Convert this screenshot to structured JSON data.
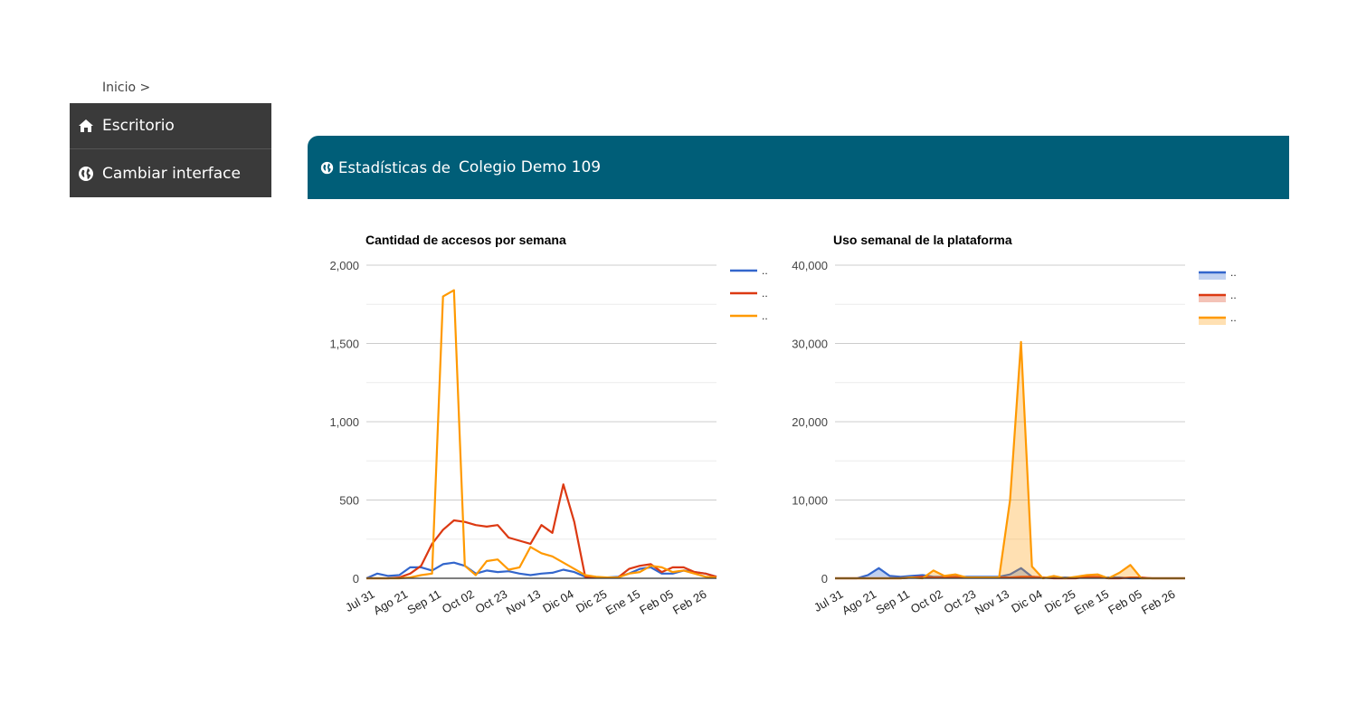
{
  "breadcrumb": {
    "home": "Inicio >"
  },
  "sidebar": {
    "items": [
      {
        "label": "Escritorio",
        "icon": "home-icon"
      },
      {
        "label": "Cambiar interface",
        "icon": "globe-icon"
      }
    ]
  },
  "banner": {
    "prefix": "Estadísticas de",
    "school": "Colegio Demo 109",
    "icon": "globe-icon",
    "color": "#005e78"
  },
  "colors": {
    "blue": "#3366cc",
    "red": "#dc3912",
    "orange": "#ff9900"
  },
  "chart_data": [
    {
      "type": "line",
      "title": "Cantidad de accesos por semana",
      "x_tick_labels": [
        "Jul 31",
        "Ago 21",
        "Sep 11",
        "Oct 02",
        "Oct 23",
        "Nov 13",
        "Dic 04",
        "Dic 25",
        "Ene 15",
        "Feb 05",
        "Feb 26"
      ],
      "ylim": [
        0,
        2000
      ],
      "yticks": [
        0,
        500,
        1000,
        1500,
        2000
      ],
      "ytick_labels": [
        "0",
        "500",
        "1,000",
        "1,500",
        "2,000"
      ],
      "legend_position": "right",
      "series": [
        {
          "legend": "..",
          "color": "#3366cc",
          "values": [
            0,
            30,
            15,
            20,
            70,
            70,
            50,
            90,
            100,
            80,
            30,
            50,
            40,
            45,
            30,
            20,
            30,
            35,
            55,
            40,
            10,
            5,
            5,
            10,
            30,
            60,
            70,
            30,
            30,
            50,
            40,
            30,
            10
          ]
        },
        {
          "legend": "..",
          "color": "#dc3912",
          "values": [
            0,
            0,
            0,
            5,
            30,
            80,
            220,
            310,
            370,
            360,
            340,
            330,
            340,
            260,
            240,
            220,
            340,
            290,
            600,
            360,
            10,
            5,
            5,
            5,
            60,
            80,
            90,
            40,
            70,
            70,
            40,
            30,
            10
          ]
        },
        {
          "legend": "..",
          "color": "#ff9900",
          "values": [
            0,
            0,
            0,
            0,
            5,
            20,
            30,
            1800,
            1840,
            80,
            20,
            110,
            120,
            55,
            70,
            200,
            160,
            140,
            100,
            60,
            20,
            10,
            5,
            5,
            30,
            40,
            80,
            70,
            40,
            50,
            30,
            10,
            5
          ]
        }
      ]
    },
    {
      "type": "area",
      "title": "Uso semanal de la plataforma",
      "x_tick_labels": [
        "Jul 31",
        "Ago 21",
        "Sep 11",
        "Oct 02",
        "Oct 23",
        "Nov 13",
        "Dic 04",
        "Dic 25",
        "Ene 15",
        "Feb 05",
        "Feb 26"
      ],
      "ylim": [
        0,
        40000
      ],
      "yticks": [
        0,
        10000,
        20000,
        30000,
        40000
      ],
      "ytick_labels": [
        "0",
        "10,000",
        "20,000",
        "30,000",
        "40,000"
      ],
      "legend_position": "right",
      "series": [
        {
          "legend": "..",
          "color": "#3366cc",
          "values": [
            0,
            0,
            0,
            400,
            1300,
            300,
            200,
            300,
            400,
            200,
            200,
            200,
            200,
            200,
            200,
            200,
            500,
            1300,
            200,
            100,
            100,
            100,
            100,
            100,
            100,
            100,
            100,
            0,
            0,
            0,
            0,
            0,
            0
          ]
        },
        {
          "legend": "..",
          "color": "#dc3912",
          "values": [
            0,
            0,
            0,
            0,
            0,
            0,
            0,
            100,
            200,
            100,
            100,
            200,
            100,
            100,
            100,
            100,
            100,
            200,
            200,
            100,
            0,
            0,
            0,
            200,
            200,
            0,
            0,
            100,
            100,
            0,
            0,
            0,
            0
          ]
        },
        {
          "legend": "..",
          "color": "#ff9900",
          "values": [
            0,
            0,
            0,
            0,
            0,
            0,
            0,
            100,
            0,
            1000,
            300,
            500,
            100,
            100,
            100,
            100,
            10000,
            30200,
            1500,
            0,
            300,
            0,
            200,
            400,
            500,
            0,
            700,
            1700,
            0,
            0,
            0,
            0,
            0
          ]
        }
      ]
    }
  ]
}
